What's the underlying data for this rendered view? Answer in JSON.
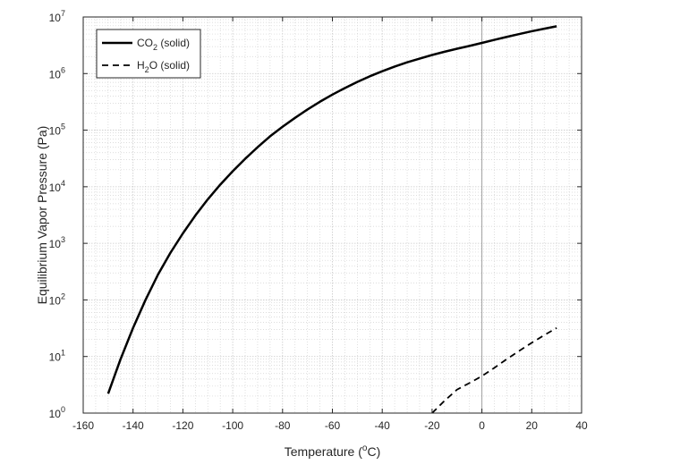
{
  "chart_data": {
    "type": "line",
    "title": "",
    "xlabel": "Temperature (",
    "xlabel_sup": "o",
    "xlabel_end": "C)",
    "ylabel": "Equilibrium Vapor Pressure (Pa)",
    "xlim": [
      -160,
      40
    ],
    "ylim": [
      1,
      10000000
    ],
    "yscale": "log",
    "grid": true,
    "minor_grid": true,
    "legend_position": "top-left",
    "x_ticks": [
      "-160",
      "-140",
      "-120",
      "-100",
      "-80",
      "-60",
      "-40",
      "-20",
      "0",
      "20",
      "40"
    ],
    "y_ticks": [
      {
        "base": "10",
        "exp": "0"
      },
      {
        "base": "10",
        "exp": "1"
      },
      {
        "base": "10",
        "exp": "2"
      },
      {
        "base": "10",
        "exp": "3"
      },
      {
        "base": "10",
        "exp": "4"
      },
      {
        "base": "10",
        "exp": "5"
      },
      {
        "base": "10",
        "exp": "6"
      },
      {
        "base": "10",
        "exp": "7"
      }
    ],
    "series": [
      {
        "name": "CO2 (solid)",
        "legend_main": "CO",
        "legend_sub": "2",
        "legend_end": " (solid)",
        "style": "solid",
        "color": "#000000",
        "x": [
          -150,
          -145,
          -140,
          -135,
          -130,
          -125,
          -120,
          -115,
          -110,
          -105,
          -100,
          -95,
          -90,
          -85,
          -80,
          -75,
          -70,
          -65,
          -60,
          -55,
          -50,
          -45,
          -40,
          -35,
          -30,
          -25,
          -20,
          -15,
          -10,
          -5,
          0,
          5,
          10,
          15,
          20,
          25,
          30
        ],
        "y": [
          2.2,
          9,
          32,
          100,
          280,
          680,
          1500,
          3100,
          6000,
          10900,
          18800,
          31200,
          50000,
          78000,
          115000,
          165000,
          232000,
          318000,
          425000,
          555000,
          712000,
          895000,
          1100000,
          1330000,
          1580000,
          1840000,
          2130000,
          2430000,
          2750000,
          3080000,
          3480000,
          3950000,
          4450000,
          5000000,
          5600000,
          6200000,
          6850000
        ]
      },
      {
        "name": "H2O (solid)",
        "legend_main": "H",
        "legend_sub": "2",
        "legend_end": "O (solid)",
        "style": "dashed",
        "color": "#000000",
        "x": [
          -20,
          -15,
          -10,
          -5,
          0,
          5,
          10,
          15,
          20,
          25,
          30
        ],
        "y": [
          1.0,
          1.65,
          2.6,
          3.4,
          4.5,
          6.3,
          9.0,
          12.6,
          17.5,
          23.8,
          32
        ]
      }
    ]
  }
}
